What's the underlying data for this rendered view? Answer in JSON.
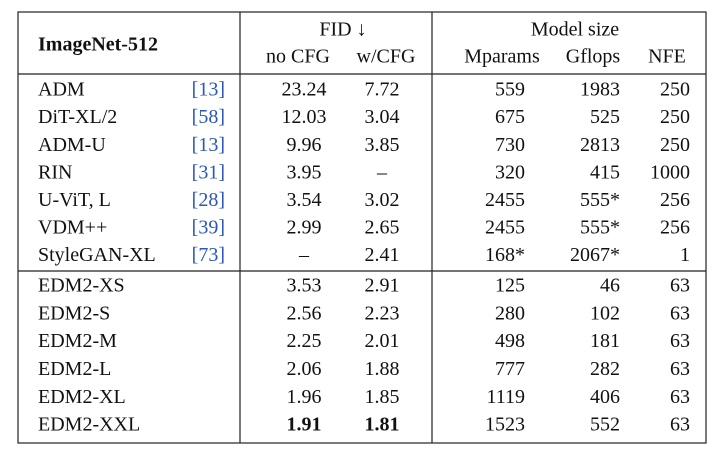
{
  "table": {
    "header": {
      "title": "ImageNet-512",
      "fid": "FID ↓",
      "no_cfg": "no CFG",
      "w_cfg": "w/CFG",
      "model_size": "Model size",
      "mparams": "Mparams",
      "gflops": "Gflops",
      "nfe": "NFE"
    },
    "rows": [
      {
        "method": "ADM",
        "cite": "[13]",
        "no_cfg": "23.24",
        "w_cfg": "7.72",
        "mparams": "559",
        "gflops": "1983",
        "nfe": "250"
      },
      {
        "method": "DiT-XL/2",
        "cite": "[58]",
        "no_cfg": "12.03",
        "w_cfg": "3.04",
        "mparams": "675",
        "gflops": "525",
        "nfe": "250"
      },
      {
        "method": "ADM-U",
        "cite": "[13]",
        "no_cfg": "9.96",
        "w_cfg": "3.85",
        "mparams": "730",
        "gflops": "2813",
        "nfe": "250"
      },
      {
        "method": "RIN",
        "cite": "[31]",
        "no_cfg": "3.95",
        "w_cfg": "–",
        "mparams": "320",
        "gflops": "415",
        "nfe": "1000"
      },
      {
        "method": "U-ViT, L",
        "cite": "[28]",
        "no_cfg": "3.54",
        "w_cfg": "3.02",
        "mparams": "2455",
        "gflops": "555*",
        "nfe": "256"
      },
      {
        "method": "VDM++",
        "cite": "[39]",
        "no_cfg": "2.99",
        "w_cfg": "2.65",
        "mparams": "2455",
        "gflops": "555*",
        "nfe": "256"
      },
      {
        "method": "StyleGAN-XL",
        "cite": "[73]",
        "no_cfg": "–",
        "w_cfg": "2.41",
        "mparams": "168*",
        "gflops": "2067*",
        "nfe": "1"
      },
      {
        "method": "EDM2-XS",
        "no_cfg": "3.53",
        "w_cfg": "2.91",
        "mparams": "125",
        "gflops": "46",
        "nfe": "63"
      },
      {
        "method": "EDM2-S",
        "no_cfg": "2.56",
        "w_cfg": "2.23",
        "mparams": "280",
        "gflops": "102",
        "nfe": "63"
      },
      {
        "method": "EDM2-M",
        "no_cfg": "2.25",
        "w_cfg": "2.01",
        "mparams": "498",
        "gflops": "181",
        "nfe": "63"
      },
      {
        "method": "EDM2-L",
        "no_cfg": "2.06",
        "w_cfg": "1.88",
        "mparams": "777",
        "gflops": "282",
        "nfe": "63"
      },
      {
        "method": "EDM2-XL",
        "no_cfg": "1.96",
        "w_cfg": "1.85",
        "mparams": "1119",
        "gflops": "406",
        "nfe": "63"
      },
      {
        "method": "EDM2-XXL",
        "no_cfg": "1.91",
        "w_cfg": "1.81",
        "mparams": "1523",
        "gflops": "552",
        "nfe": "63",
        "bold": [
          "no_cfg",
          "w_cfg"
        ]
      }
    ]
  }
}
